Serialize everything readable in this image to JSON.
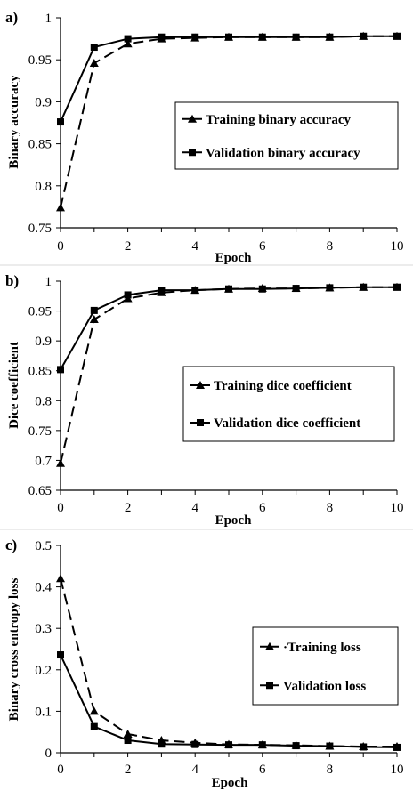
{
  "charts": [
    {
      "panel_label": "a)",
      "legend_entries": [
        "Training binary accuracy",
        "Validation binary accuracy"
      ]
    },
    {
      "panel_label": "b)",
      "legend_entries": [
        "Training dice coefficient",
        "Validation dice coefficient"
      ]
    },
    {
      "panel_label": "c)",
      "legend_entries": [
        "·Training loss",
        "Validation loss"
      ]
    }
  ],
  "chart_data": [
    {
      "type": "line",
      "title": "",
      "xlabel": "Epoch",
      "ylabel": "Binary accuracy",
      "xlim": [
        0,
        10
      ],
      "ylim": [
        0.75,
        1
      ],
      "xticks": [
        0,
        2,
        4,
        6,
        8,
        10
      ],
      "yticks": [
        0.75,
        0.8,
        0.85,
        0.9,
        0.95,
        1
      ],
      "ytick_labels": [
        "0.75",
        "0.8",
        "0.85",
        "0.9",
        "0.95",
        "1"
      ],
      "grid": false,
      "legend": "center-right",
      "x": [
        0,
        1,
        2,
        3,
        4,
        5,
        6,
        7,
        8,
        9,
        10
      ],
      "series": [
        {
          "name": "Training binary accuracy",
          "marker": "triangle",
          "dash": "dashed",
          "values": [
            0.774,
            0.946,
            0.969,
            0.975,
            0.976,
            0.977,
            0.977,
            0.977,
            0.977,
            0.978,
            0.978
          ]
        },
        {
          "name": "Validation binary accuracy",
          "marker": "square",
          "dash": "solid",
          "values": [
            0.876,
            0.965,
            0.975,
            0.977,
            0.977,
            0.977,
            0.977,
            0.977,
            0.977,
            0.978,
            0.978
          ]
        }
      ]
    },
    {
      "type": "line",
      "title": "",
      "xlabel": "Epoch",
      "ylabel": "Dice coefficient",
      "xlim": [
        0,
        10
      ],
      "ylim": [
        0.65,
        1
      ],
      "xticks": [
        0,
        2,
        4,
        6,
        8,
        10
      ],
      "yticks": [
        0.65,
        0.7,
        0.75,
        0.8,
        0.85,
        0.9,
        0.95,
        1
      ],
      "ytick_labels": [
        "0.65",
        "0.7",
        "0.75",
        "0.8",
        "0.85",
        "0.9",
        "0.95",
        "1"
      ],
      "grid": false,
      "legend": "center-right",
      "x": [
        0,
        1,
        2,
        3,
        4,
        5,
        6,
        7,
        8,
        9,
        10
      ],
      "series": [
        {
          "name": "Training dice coefficient",
          "marker": "triangle",
          "dash": "dashed",
          "values": [
            0.695,
            0.936,
            0.971,
            0.981,
            0.985,
            0.987,
            0.988,
            0.988,
            0.989,
            0.99,
            0.99
          ]
        },
        {
          "name": "Validation dice coefficient",
          "marker": "square",
          "dash": "solid",
          "values": [
            0.852,
            0.951,
            0.977,
            0.985,
            0.985,
            0.987,
            0.987,
            0.988,
            0.989,
            0.99,
            0.99
          ]
        }
      ]
    },
    {
      "type": "line",
      "title": "",
      "xlabel": "Epoch",
      "ylabel": "Binary cross entropy loss",
      "xlim": [
        0,
        10
      ],
      "ylim": [
        0,
        0.5
      ],
      "xticks": [
        0,
        2,
        4,
        6,
        8,
        10
      ],
      "yticks": [
        0,
        0.1,
        0.2,
        0.3,
        0.4,
        0.5
      ],
      "ytick_labels": [
        "0",
        "0.1",
        "0.2",
        "0.3",
        "0.4",
        "0.5"
      ],
      "grid": false,
      "legend": "center-right",
      "x": [
        0,
        1,
        2,
        3,
        4,
        5,
        6,
        7,
        8,
        9,
        10
      ],
      "series": [
        {
          "name": "Training loss",
          "marker": "triangle",
          "dash": "dashed",
          "values": [
            0.42,
            0.1,
            0.045,
            0.03,
            0.024,
            0.02,
            0.019,
            0.018,
            0.016,
            0.015,
            0.015
          ]
        },
        {
          "name": "Validation loss",
          "marker": "square",
          "dash": "solid",
          "values": [
            0.236,
            0.063,
            0.03,
            0.021,
            0.02,
            0.019,
            0.019,
            0.017,
            0.016,
            0.014,
            0.013
          ]
        }
      ]
    }
  ]
}
